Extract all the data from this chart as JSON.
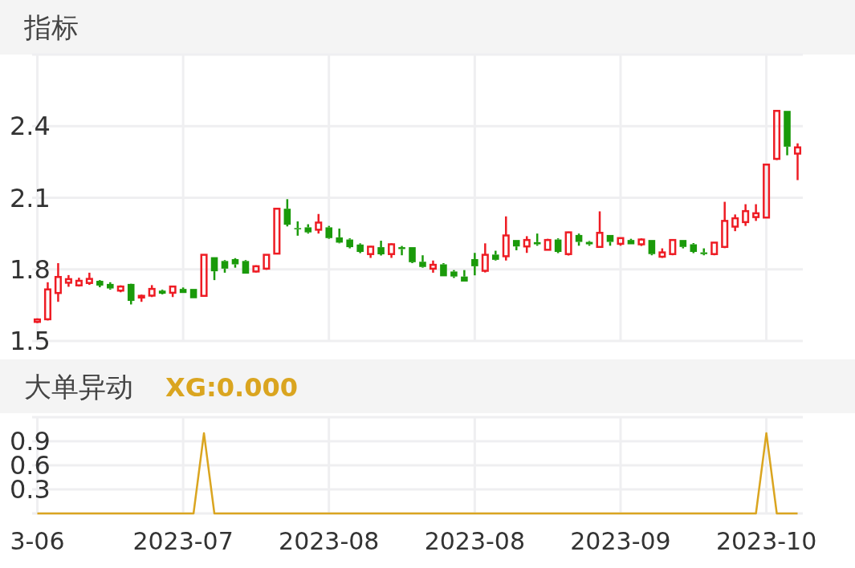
{
  "chart_data": [
    {
      "type": "candlestick",
      "title": "指标",
      "tick_labels": "y",
      "grid": true,
      "categories": [
        null,
        null,
        null,
        null,
        null,
        null,
        null,
        null,
        null,
        null,
        null,
        null,
        null,
        null,
        null,
        null,
        null,
        null,
        null,
        null,
        null,
        null,
        null,
        null,
        null,
        null,
        null,
        null,
        null,
        null,
        null,
        null,
        null,
        null,
        null,
        null,
        null,
        null,
        null,
        null,
        null,
        null,
        null,
        null,
        null,
        null,
        null,
        null,
        null,
        null,
        null,
        null,
        null,
        null,
        null,
        null,
        null,
        null,
        null,
        null,
        null,
        null,
        null,
        null,
        null,
        null,
        null,
        null,
        null,
        null,
        null,
        null,
        null,
        null
      ],
      "ylim": [
        1.5,
        2.7
      ],
      "yticks": [
        1.5,
        1.8,
        2.1,
        2.4
      ],
      "ohlc": [
        [
          1.58,
          1.595,
          1.575,
          1.59
        ],
        [
          1.591,
          1.746,
          1.586,
          1.716
        ],
        [
          1.701,
          1.826,
          1.664,
          1.768
        ],
        [
          1.744,
          1.776,
          1.727,
          1.759
        ],
        [
          1.733,
          1.765,
          1.728,
          1.752
        ],
        [
          1.743,
          1.786,
          1.735,
          1.76
        ],
        [
          1.752,
          1.755,
          1.725,
          1.732
        ],
        [
          1.739,
          1.746,
          1.715,
          1.72
        ],
        [
          1.711,
          1.733,
          1.704,
          1.728
        ],
        [
          1.739,
          1.74,
          1.653,
          1.668
        ],
        [
          1.682,
          1.694,
          1.664,
          1.689
        ],
        [
          1.69,
          1.734,
          1.684,
          1.718
        ],
        [
          1.711,
          1.715,
          1.695,
          1.698
        ],
        [
          1.702,
          1.728,
          1.684,
          1.728
        ],
        [
          1.718,
          1.724,
          1.701,
          1.701
        ],
        [
          1.718,
          1.718,
          1.679,
          1.679
        ],
        [
          1.689,
          1.861,
          1.689,
          1.861
        ],
        [
          1.851,
          1.851,
          1.755,
          1.792
        ],
        [
          1.835,
          1.839,
          1.786,
          1.803
        ],
        [
          1.843,
          1.847,
          1.807,
          1.821
        ],
        [
          1.835,
          1.839,
          1.782,
          1.782
        ],
        [
          1.791,
          1.817,
          1.787,
          1.813
        ],
        [
          1.803,
          1.861,
          1.798,
          1.861
        ],
        [
          1.866,
          2.054,
          1.866,
          2.054
        ],
        [
          2.054,
          2.094,
          1.98,
          1.987
        ],
        [
          1.973,
          2.001,
          1.941,
          1.968
        ],
        [
          1.976,
          1.989,
          1.95,
          1.955
        ],
        [
          1.966,
          2.032,
          1.95,
          1.996
        ],
        [
          1.976,
          1.982,
          1.928,
          1.931
        ],
        [
          1.934,
          1.971,
          1.909,
          1.912
        ],
        [
          1.925,
          1.93,
          1.888,
          1.893
        ],
        [
          1.904,
          1.909,
          1.868,
          1.873
        ],
        [
          1.864,
          1.898,
          1.848,
          1.895
        ],
        [
          1.893,
          1.92,
          1.858,
          1.863
        ],
        [
          1.864,
          1.909,
          1.848,
          1.905
        ],
        [
          1.893,
          1.898,
          1.859,
          1.885
        ],
        [
          1.893,
          1.893,
          1.826,
          1.83
        ],
        [
          1.832,
          1.859,
          1.807,
          1.81
        ],
        [
          1.803,
          1.837,
          1.786,
          1.819
        ],
        [
          1.821,
          1.826,
          1.771,
          1.771
        ],
        [
          1.791,
          1.797,
          1.764,
          1.77
        ],
        [
          1.77,
          1.797,
          1.749,
          1.749
        ],
        [
          1.843,
          1.869,
          1.775,
          1.813
        ],
        [
          1.794,
          1.909,
          1.787,
          1.861
        ],
        [
          1.862,
          1.878,
          1.837,
          1.84
        ],
        [
          1.855,
          2.022,
          1.837,
          1.942
        ],
        [
          1.923,
          1.923,
          1.88,
          1.896
        ],
        [
          1.896,
          1.939,
          1.869,
          1.923
        ],
        [
          1.914,
          1.95,
          1.899,
          1.905
        ],
        [
          1.882,
          1.928,
          1.88,
          1.923
        ],
        [
          1.925,
          1.93,
          1.868,
          1.873
        ],
        [
          1.864,
          1.958,
          1.858,
          1.955
        ],
        [
          1.944,
          1.95,
          1.899,
          1.915
        ],
        [
          1.915,
          1.919,
          1.899,
          1.905
        ],
        [
          1.894,
          2.043,
          1.894,
          1.953
        ],
        [
          1.944,
          1.944,
          1.899,
          1.915
        ],
        [
          1.907,
          1.931,
          1.899,
          1.931
        ],
        [
          1.923,
          1.928,
          1.905,
          1.905
        ],
        [
          1.905,
          1.93,
          1.898,
          1.925
        ],
        [
          1.923,
          1.923,
          1.859,
          1.864
        ],
        [
          1.853,
          1.888,
          1.848,
          1.871
        ],
        [
          1.864,
          1.923,
          1.859,
          1.923
        ],
        [
          1.923,
          1.923,
          1.888,
          1.894
        ],
        [
          1.905,
          1.91,
          1.868,
          1.873
        ],
        [
          1.871,
          1.888,
          1.859,
          1.864
        ],
        [
          1.864,
          1.912,
          1.859,
          1.912
        ],
        [
          1.894,
          2.083,
          1.889,
          2.003
        ],
        [
          1.979,
          2.03,
          1.96,
          2.014
        ],
        [
          1.998,
          2.073,
          1.982,
          2.044
        ],
        [
          2.019,
          2.073,
          2.003,
          2.035
        ],
        [
          2.017,
          2.239,
          2.017,
          2.239
        ],
        [
          2.263,
          2.464,
          2.258,
          2.464
        ],
        [
          2.464,
          2.464,
          2.278,
          2.314
        ],
        [
          2.285,
          2.328,
          2.174,
          2.311
        ]
      ],
      "colors": [
        "#ee1c24",
        "#ee1c24",
        "#ee1c24",
        "#ee1c24",
        "#ee1c24",
        "#ee1c24",
        "#1a9a0a",
        "#1a9a0a",
        "#ee1c24",
        "#1a9a0a",
        "#ee1c24",
        "#ee1c24",
        "#1a9a0a",
        "#ee1c24",
        "#1a9a0a",
        "#1a9a0a",
        "#ee1c24",
        "#1a9a0a",
        "#1a9a0a",
        "#1a9a0a",
        "#1a9a0a",
        "#ee1c24",
        "#ee1c24",
        "#ee1c24",
        "#1a9a0a",
        "#1a9a0a",
        "#1a9a0a",
        "#ee1c24",
        "#1a9a0a",
        "#1a9a0a",
        "#1a9a0a",
        "#1a9a0a",
        "#ee1c24",
        "#1a9a0a",
        "#ee1c24",
        "#1a9a0a",
        "#1a9a0a",
        "#1a9a0a",
        "#ee1c24",
        "#1a9a0a",
        "#1a9a0a",
        "#1a9a0a",
        "#1a9a0a",
        "#ee1c24",
        "#1a9a0a",
        "#ee1c24",
        "#1a9a0a",
        "#ee1c24",
        "#1a9a0a",
        "#ee1c24",
        "#1a9a0a",
        "#ee1c24",
        "#1a9a0a",
        "#1a9a0a",
        "#ee1c24",
        "#1a9a0a",
        "#ee1c24",
        "#1a9a0a",
        "#ee1c24",
        "#1a9a0a",
        "#ee1c24",
        "#ee1c24",
        "#1a9a0a",
        "#1a9a0a",
        "#1a9a0a",
        "#ee1c24",
        "#ee1c24",
        "#ee1c24",
        "#ee1c24",
        "#ee1c24",
        "#ee1c24",
        "#ee1c24",
        "#1a9a0a",
        "#ee1c24"
      ]
    },
    {
      "type": "line",
      "title": "大单异动",
      "grid": true,
      "legend": "top left",
      "categories": [
        "3-06",
        null,
        null,
        null,
        null,
        null,
        null,
        null,
        null,
        null,
        null,
        null,
        null,
        null,
        "2023-07",
        null,
        null,
        null,
        null,
        null,
        null,
        null,
        null,
        null,
        null,
        null,
        null,
        null,
        "2023-08",
        null,
        null,
        null,
        null,
        null,
        null,
        null,
        null,
        null,
        null,
        null,
        null,
        null,
        "2023-08",
        null,
        null,
        null,
        null,
        null,
        null,
        null,
        null,
        null,
        null,
        null,
        null,
        null,
        "2023-09",
        null,
        null,
        null,
        null,
        null,
        null,
        null,
        null,
        null,
        null,
        null,
        null,
        null,
        "2023-10",
        null,
        null,
        null
      ],
      "ylim": [
        0,
        1.2
      ],
      "yticks": [
        {
          "value": 0,
          "label": null
        },
        0.3,
        0.6,
        0.9
      ],
      "series": [
        {
          "name": "XG:0.000",
          "color": "#daa520",
          "values": [
            0,
            0,
            0,
            0,
            0,
            0,
            0,
            0,
            0,
            0,
            0,
            0,
            0,
            0,
            0,
            0,
            1,
            0,
            0,
            0,
            0,
            0,
            0,
            0,
            0,
            0,
            0,
            0,
            0,
            0,
            0,
            0,
            0,
            0,
            0,
            0,
            0,
            0,
            0,
            0,
            0,
            0,
            0,
            0,
            0,
            0,
            0,
            0,
            0,
            0,
            0,
            0,
            0,
            0,
            0,
            0,
            0,
            0,
            0,
            0,
            0,
            0,
            0,
            0,
            0,
            0,
            0,
            0,
            0,
            0,
            1,
            0,
            0,
            0
          ]
        }
      ]
    }
  ]
}
